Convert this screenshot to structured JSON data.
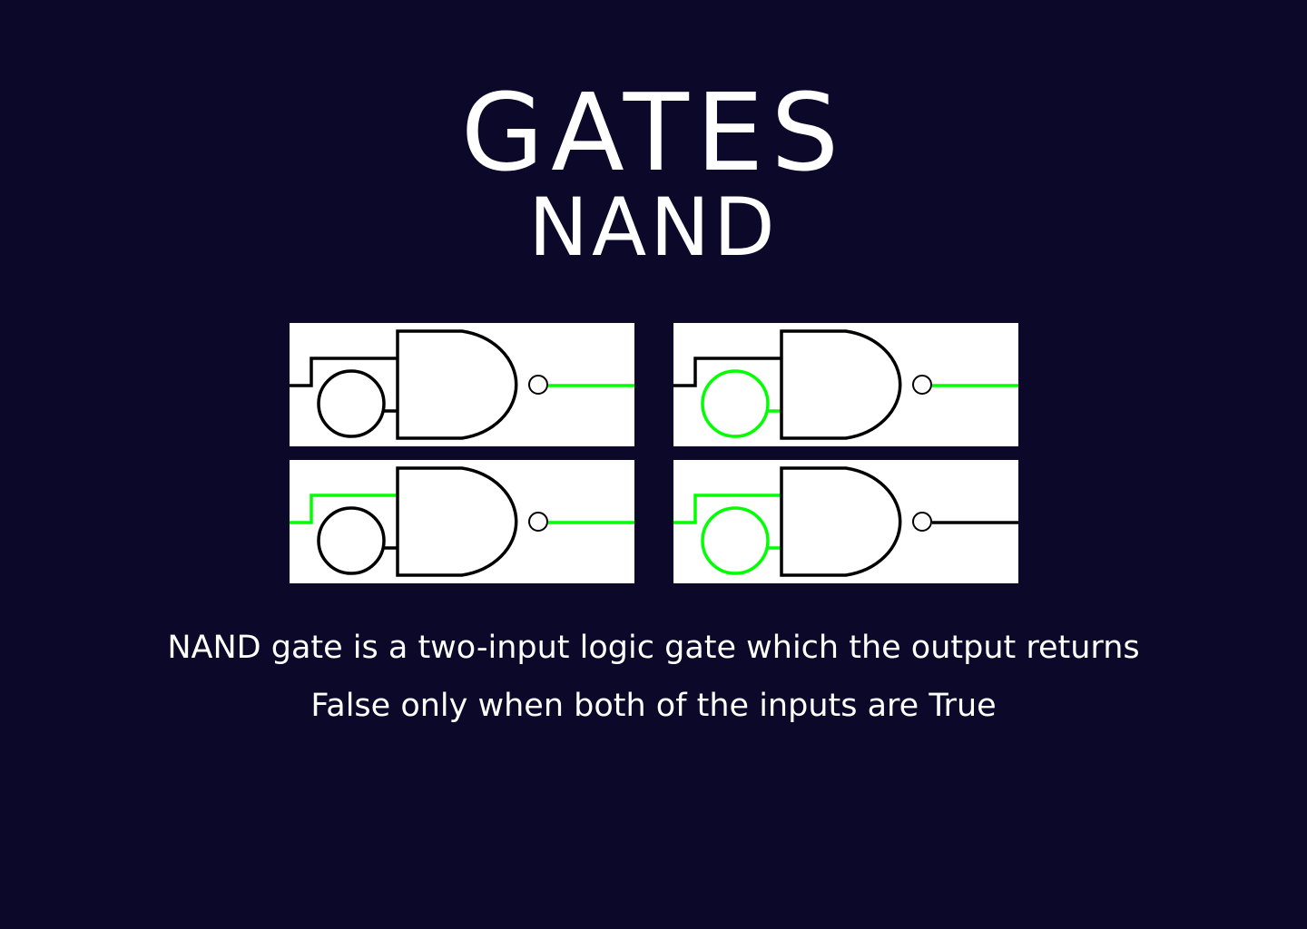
{
  "title": "GATES",
  "subtitle": "NAND",
  "description": {
    "line1": "NAND gate is a two-input logic gate which the output returns",
    "line2": "False only when both of the inputs are True"
  },
  "colors": {
    "background": "#0b0829",
    "on": "#00ff00",
    "off": "#000000",
    "panel": "#ffffff"
  },
  "truth_states": [
    {
      "input_a": false,
      "input_b": false,
      "output": true
    },
    {
      "input_a": false,
      "input_b": true,
      "output": true
    },
    {
      "input_a": true,
      "input_b": false,
      "output": true
    },
    {
      "input_a": true,
      "input_b": true,
      "output": false
    }
  ]
}
